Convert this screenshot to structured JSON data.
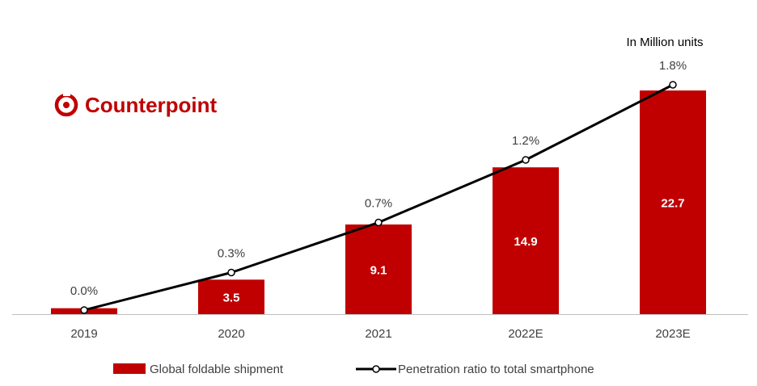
{
  "brand": {
    "name": "Counterpoint",
    "color": "#c00000",
    "icon": "counterpoint-logo-icon"
  },
  "units_note": "In Million units",
  "colors": {
    "bar": "#c00000",
    "line": "#000000",
    "marker_fill": "#ffffff",
    "axis": "#bfbfbf"
  },
  "chart_data": {
    "type": "bar",
    "categories": [
      "2019",
      "2020",
      "2021",
      "2022E",
      "2023E"
    ],
    "series": [
      {
        "name": "Global foldable shipment",
        "type": "bar",
        "values": [
          0.6,
          3.5,
          9.1,
          14.9,
          22.7
        ],
        "labels": [
          "",
          "3.5",
          "9.1",
          "14.9",
          "22.7"
        ]
      },
      {
        "name": "Penetration ratio to total smartphone",
        "type": "line",
        "values": [
          0.0,
          0.3,
          0.7,
          1.2,
          1.8
        ],
        "labels": [
          "0.0%",
          "0.3%",
          "0.7%",
          "1.2%",
          "1.8%"
        ]
      }
    ],
    "legend": "bottom-center",
    "grid": false
  }
}
